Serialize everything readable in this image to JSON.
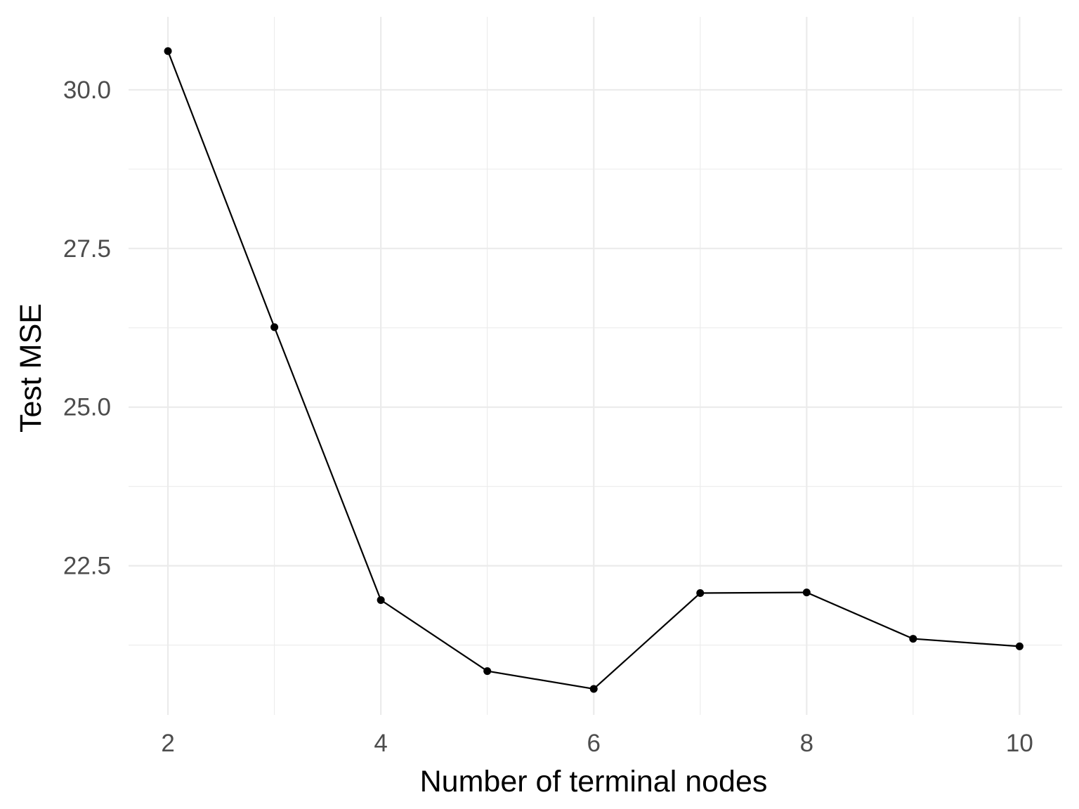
{
  "chart_data": {
    "type": "line",
    "title": "",
    "xlabel": "Number of terminal nodes",
    "ylabel": "Test MSE",
    "x": [
      2,
      3,
      4,
      5,
      6,
      7,
      8,
      9,
      10
    ],
    "y": [
      30.61,
      26.26,
      21.96,
      20.84,
      20.56,
      22.07,
      22.08,
      21.35,
      21.23
    ],
    "x_ticks": [
      2,
      4,
      6,
      8,
      10
    ],
    "x_tick_labels": [
      "2",
      "4",
      "6",
      "8",
      "10"
    ],
    "y_ticks": [
      22.5,
      25.0,
      27.5,
      30.0
    ],
    "y_tick_labels": [
      "22.5",
      "25.0",
      "27.5",
      "30.0"
    ],
    "xlim": [
      1.63,
      10.4
    ],
    "ylim": [
      20.15,
      31.15
    ],
    "grid": true,
    "legend": "none",
    "line_color": "#000000",
    "grid_color": "#ebebeb",
    "tick_label_color": "#4d4d4d"
  }
}
